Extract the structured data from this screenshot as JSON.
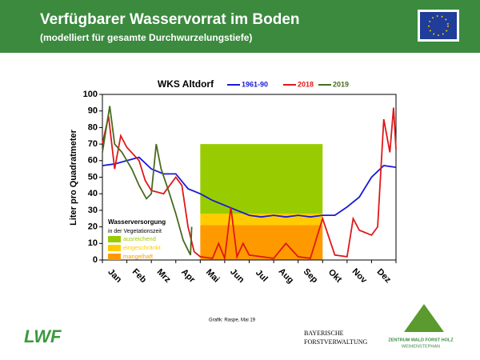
{
  "header": {
    "title": "Verfügbarer Wasservorrat im Boden",
    "subtitle": "(modelliert für gesamte Durchwurzelungstiefe)"
  },
  "footer": {
    "credit": "Grafik: Raspe, Mai 19",
    "logo_left": "LWF",
    "org1": "BAYERISCHE",
    "org2": "FORSTVERWALTUNG",
    "org3": "ZENTRUM WALD FORST HOLZ",
    "org4": "WEIHENSTEPHAN"
  },
  "chart_data": {
    "type": "line",
    "title": "WKS Altdorf",
    "y_label": "Liter pro Quadratmeter",
    "categories": [
      "Jan",
      "Feb",
      "Mrz",
      "Apr",
      "Mai",
      "Jun",
      "Jul",
      "Aug",
      "Sep",
      "Okt",
      "Nov",
      "Dez"
    ],
    "xlim": [
      0,
      12
    ],
    "xticks": [
      0,
      1,
      2,
      3,
      4,
      5,
      6,
      7,
      8,
      9,
      10,
      11,
      12
    ],
    "ylim": [
      0,
      100
    ],
    "yticks": [
      0,
      10,
      20,
      30,
      40,
      50,
      60,
      70,
      80,
      90,
      100
    ],
    "series": [
      {
        "name": "1961-90",
        "color": "#1a1ad6",
        "x": [
          0,
          0.5,
          1,
          1.5,
          2,
          2.5,
          3,
          3.5,
          4,
          4.5,
          5,
          5.5,
          6,
          6.5,
          7,
          7.5,
          8,
          8.5,
          9,
          9.5,
          10,
          10.5,
          11,
          11.5,
          12
        ],
        "values": [
          57,
          58,
          60,
          62,
          55,
          52,
          52,
          43,
          40,
          36,
          33,
          30,
          27,
          26,
          27,
          26,
          27,
          26,
          27,
          27,
          32,
          38,
          50,
          57,
          56
        ]
      },
      {
        "name": "2018",
        "color": "#e01818",
        "x": [
          0,
          0.25,
          0.5,
          0.75,
          1,
          1.5,
          1.75,
          2,
          2.5,
          3,
          3.25,
          3.5,
          3.75,
          4,
          4.5,
          4.75,
          5,
          5.25,
          5.5,
          5.75,
          6,
          6.5,
          7,
          7.5,
          8,
          8.5,
          9,
          9.5,
          10,
          10.25,
          10.5,
          11,
          11.25,
          11.5,
          11.75,
          11.9,
          12
        ],
        "values": [
          70,
          87,
          55,
          75,
          68,
          60,
          48,
          42,
          40,
          50,
          45,
          20,
          5,
          2,
          1,
          10,
          1,
          32,
          2,
          10,
          3,
          2,
          1,
          10,
          2,
          1,
          25,
          3,
          2,
          25,
          18,
          15,
          20,
          85,
          65,
          92,
          67
        ]
      },
      {
        "name": "2019",
        "color": "#4a6b1f",
        "x": [
          0,
          0.3,
          0.5,
          0.8,
          1,
          1.2,
          1.5,
          1.8,
          2,
          2.2,
          2.4,
          2.7,
          3,
          3.3,
          3.6,
          3.65
        ],
        "values": [
          65,
          93,
          70,
          65,
          60,
          55,
          45,
          37,
          40,
          70,
          55,
          42,
          28,
          12,
          3,
          20
        ]
      }
    ],
    "band_title": "Wasserversorgung",
    "band_subtitle": "in der Vegetationszeit",
    "bands": [
      {
        "name": "ausreichend",
        "color": "#99cc00",
        "xrange": [
          4,
          9
        ],
        "ymin": 28,
        "ymax": 70
      },
      {
        "name": "eingeschränkt",
        "color": "#ffcc00",
        "xrange": [
          4,
          9
        ],
        "ymin": 21,
        "ymax": 28
      },
      {
        "name": "mangelhaft",
        "color": "#ff9900",
        "xrange": [
          4,
          9
        ],
        "ymin": 0,
        "ymax": 21
      }
    ]
  }
}
